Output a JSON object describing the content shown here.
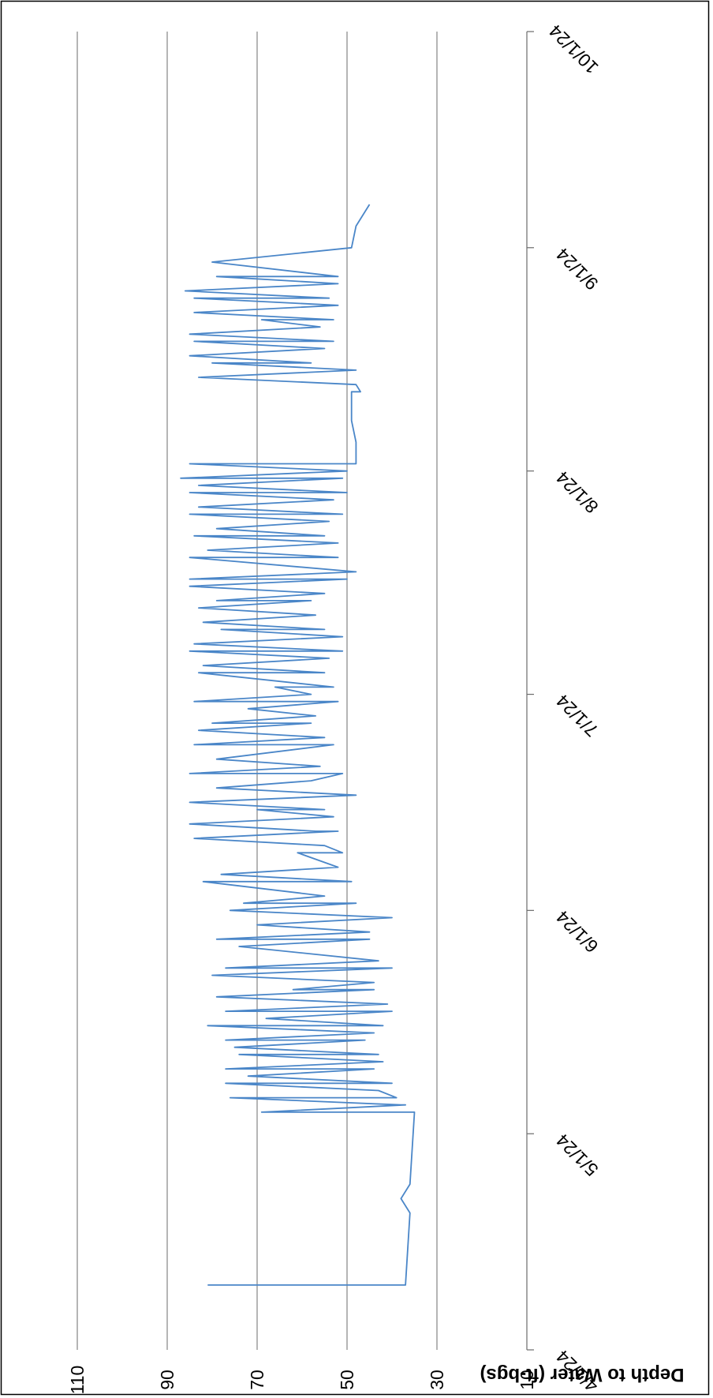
{
  "chart_data": {
    "type": "line",
    "orientation": "rotated-180",
    "title": "",
    "xlabel": "",
    "ylabel": "Depth to Water (ft-bgs)",
    "xlim": [
      "4/1/24",
      "10/1/24"
    ],
    "ylim": [
      10,
      110
    ],
    "x_ticks": [
      "4/1/24",
      "5/1/24",
      "6/1/24",
      "7/1/24",
      "8/1/24",
      "9/1/24",
      "10/1/24"
    ],
    "y_ticks": [
      10,
      30,
      50,
      70,
      90,
      110
    ],
    "grid": "horizontal",
    "legend": "none",
    "series_color": "#4a86c8",
    "series": [
      {
        "x": [
          "2024-04-10",
          "2024-04-10",
          "2024-04-20",
          "2024-04-22",
          "2024-04-24",
          "2024-05-04",
          "2024-05-04",
          "2024-05-05",
          "2024-05-05",
          "2024-05-06",
          "2024-05-06",
          "2024-05-07",
          "2024-05-08",
          "2024-05-08",
          "2024-05-09",
          "2024-05-10",
          "2024-05-10",
          "2024-05-11",
          "2024-05-12",
          "2024-05-12",
          "2024-05-13",
          "2024-05-14",
          "2024-05-14",
          "2024-05-15",
          "2024-05-16",
          "2024-05-16",
          "2024-05-17",
          "2024-05-18",
          "2024-05-18",
          "2024-05-19",
          "2024-05-20",
          "2024-05-21",
          "2024-05-21",
          "2024-05-22",
          "2024-05-23",
          "2024-05-24",
          "2024-05-24",
          "2024-05-25",
          "2024-05-27",
          "2024-05-28",
          "2024-05-28",
          "2024-05-29",
          "2024-05-30",
          "2024-05-31",
          "2024-06-01",
          "2024-06-02",
          "2024-06-02",
          "2024-06-03",
          "2024-06-05",
          "2024-06-05",
          "2024-06-06",
          "2024-06-07",
          "2024-06-09",
          "2024-06-09",
          "2024-06-10",
          "2024-06-11",
          "2024-06-12",
          "2024-06-12",
          "2024-06-13",
          "2024-06-14",
          "2024-06-15",
          "2024-06-15",
          "2024-06-16",
          "2024-06-17",
          "2024-06-18",
          "2024-06-19",
          "2024-06-20",
          "2024-06-20",
          "2024-06-21",
          "2024-06-22",
          "2024-06-24",
          "2024-06-24",
          "2024-06-25",
          "2024-06-26",
          "2024-06-27",
          "2024-06-27",
          "2024-06-28",
          "2024-06-29",
          "2024-06-30",
          "2024-06-30",
          "2024-07-01",
          "2024-07-02",
          "2024-07-02",
          "2024-07-04",
          "2024-07-04",
          "2024-07-05",
          "2024-07-06",
          "2024-07-07",
          "2024-07-07",
          "2024-07-08",
          "2024-07-09",
          "2024-07-10",
          "2024-07-10",
          "2024-07-11",
          "2024-07-12",
          "2024-07-13",
          "2024-07-14",
          "2024-07-14",
          "2024-07-15",
          "2024-07-16",
          "2024-07-17",
          "2024-07-17",
          "2024-07-18",
          "2024-07-20",
          "2024-07-20",
          "2024-07-21",
          "2024-07-22",
          "2024-07-23",
          "2024-07-23",
          "2024-07-24",
          "2024-07-25",
          "2024-07-26",
          "2024-07-26",
          "2024-07-27",
          "2024-07-28",
          "2024-07-29",
          "2024-07-29",
          "2024-07-30",
          "2024-07-31",
          "2024-07-31",
          "2024-08-01",
          "2024-08-02",
          "2024-08-02",
          "2024-08-05",
          "2024-08-08",
          "2024-08-12",
          "2024-08-12",
          "2024-08-13",
          "2024-08-13",
          "2024-08-14",
          "2024-08-15",
          "2024-08-16",
          "2024-08-16",
          "2024-08-17",
          "2024-08-18",
          "2024-08-19",
          "2024-08-19",
          "2024-08-20",
          "2024-08-21",
          "2024-08-22",
          "2024-08-22",
          "2024-08-23",
          "2024-08-24",
          "2024-08-25",
          "2024-08-25",
          "2024-08-26",
          "2024-08-27",
          "2024-08-28",
          "2024-08-28",
          "2024-08-30",
          "2024-09-01",
          "2024-09-04",
          "2024-09-07"
        ],
        "y": [
          81,
          37,
          36,
          38,
          36,
          35,
          69,
          37,
          38,
          76,
          39,
          43,
          77,
          40,
          72,
          44,
          77,
          42,
          74,
          43,
          75,
          46,
          77,
          44,
          81,
          42,
          68,
          40,
          77,
          41,
          79,
          44,
          62,
          44,
          80,
          40,
          77,
          43,
          74,
          45,
          79,
          45,
          70,
          40,
          76,
          48,
          73,
          55,
          82,
          49,
          78,
          52,
          61,
          51,
          55,
          84,
          52,
          57,
          85,
          53,
          70,
          55,
          85,
          48,
          79,
          58,
          51,
          85,
          56,
          79,
          53,
          84,
          55,
          83,
          58,
          80,
          57,
          72,
          52,
          84,
          58,
          66,
          53,
          83,
          55,
          82,
          54,
          85,
          51,
          84,
          51,
          78,
          55,
          82,
          57,
          83,
          58,
          79,
          55,
          85,
          50,
          85,
          48,
          85,
          52,
          81,
          52,
          84,
          55,
          79,
          54,
          85,
          51,
          83,
          53,
          85,
          50,
          83,
          51,
          87,
          50,
          85,
          48,
          48,
          49,
          49,
          47,
          48,
          48,
          83,
          48,
          80,
          58,
          85,
          55,
          84,
          53,
          85,
          56,
          69,
          53,
          84,
          52,
          84,
          54,
          86,
          52,
          79,
          52,
          80,
          49,
          48,
          45
        ]
      }
    ]
  }
}
